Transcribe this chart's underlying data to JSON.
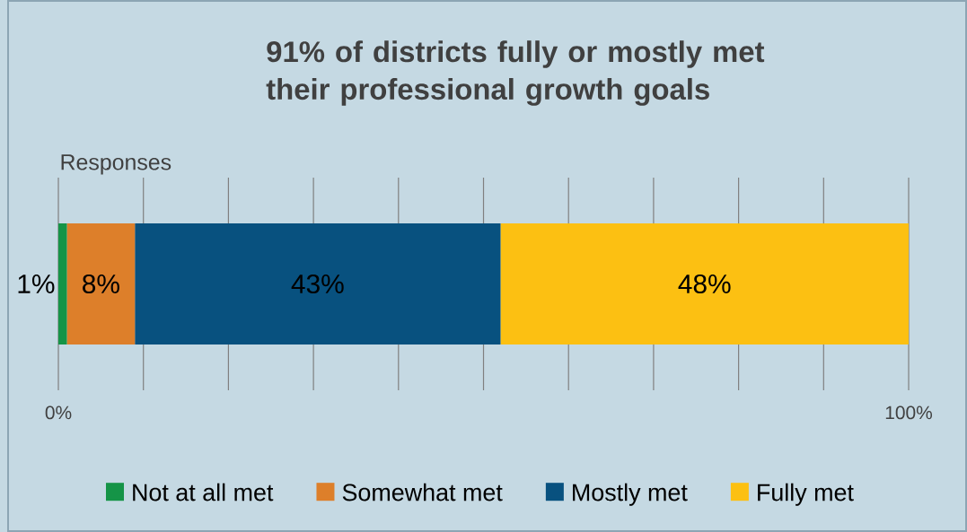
{
  "chart_data": {
    "type": "bar",
    "orientation": "horizontal",
    "stacked": true,
    "title": "91% of districts fully or mostly met their professional growth goals",
    "categories": [
      "Responses"
    ],
    "series": [
      {
        "name": "Not at all met",
        "color": "#159447",
        "values": [
          1
        ],
        "value_labels": [
          "1%"
        ]
      },
      {
        "name": "Somewhat met",
        "color": "#dd7f2a",
        "values": [
          8
        ],
        "value_labels": [
          "8%"
        ]
      },
      {
        "name": "Mostly met",
        "color": "#08517f",
        "values": [
          43
        ],
        "value_labels": [
          "43%"
        ]
      },
      {
        "name": "Fully met",
        "color": "#fcc012",
        "values": [
          48
        ],
        "value_labels": [
          "48%"
        ]
      }
    ],
    "xlim": [
      0,
      100
    ],
    "xticks": [
      {
        "value": 0,
        "label": "0%"
      },
      {
        "value": 10,
        "label": null
      },
      {
        "value": 20,
        "label": null
      },
      {
        "value": 30,
        "label": null
      },
      {
        "value": 40,
        "label": null
      },
      {
        "value": 50,
        "label": null
      },
      {
        "value": 60,
        "label": null
      },
      {
        "value": 70,
        "label": null
      },
      {
        "value": 80,
        "label": null
      },
      {
        "value": 90,
        "label": null
      },
      {
        "value": 100,
        "label": "100%"
      }
    ],
    "grid": "x",
    "legend": "bottom"
  }
}
